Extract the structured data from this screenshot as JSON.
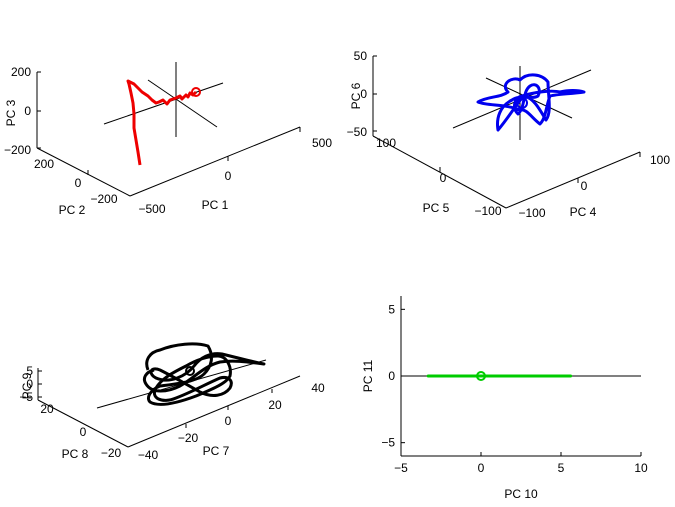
{
  "chart_data": [
    {
      "type": "line-3d",
      "panel": "top-left",
      "color": "#ff0000",
      "xlabel": "PC 1",
      "ylabel": "PC 2",
      "zlabel": "PC 3",
      "xticks": [
        "−500",
        "0",
        "500"
      ],
      "yticks": [
        "200",
        "0",
        "−200"
      ],
      "zticks": [
        "200",
        "0",
        "−200"
      ],
      "xlim": [
        -500,
        500
      ],
      "ylim": [
        -300,
        200
      ],
      "zlim": [
        -200,
        200
      ],
      "marker": "circle at trajectory start"
    },
    {
      "type": "line-3d",
      "panel": "top-right",
      "color": "#0000ff",
      "xlabel": "PC 4",
      "ylabel": "PC 5",
      "zlabel": "PC 6",
      "xticks": [
        "−100",
        "0",
        "100"
      ],
      "yticks": [
        "100",
        "0",
        "−100"
      ],
      "zticks": [
        "50",
        "0",
        "−50"
      ],
      "xlim": [
        -100,
        100
      ],
      "ylim": [
        -100,
        100
      ],
      "zlim": [
        -50,
        50
      ],
      "marker": "circle at trajectory start"
    },
    {
      "type": "line-3d",
      "panel": "bottom-left",
      "color": "#000000",
      "xlabel": "PC 7",
      "ylabel": "PC 8",
      "zlabel": "PC 9",
      "xticks": [
        "−40",
        "−20",
        "0",
        "20",
        "40"
      ],
      "yticks": [
        "20",
        "0",
        "−20"
      ],
      "zticks": [
        "5",
        "0",
        "−5"
      ],
      "xlim": [
        -40,
        40
      ],
      "ylim": [
        -20,
        20
      ],
      "zlim": [
        -5,
        5
      ],
      "marker": "circle at trajectory start"
    },
    {
      "type": "line",
      "panel": "bottom-right",
      "color": "#00cc00",
      "xlabel": "PC 10",
      "ylabel": "PC 11",
      "xticks": [
        "−5",
        "0",
        "5",
        "10"
      ],
      "yticks": [
        "5",
        "0",
        "−5"
      ],
      "xlim": [
        -5,
        10
      ],
      "ylim": [
        -6,
        6
      ],
      "x": [
        -3.3,
        5.6
      ],
      "y": [
        0,
        0
      ],
      "marker": {
        "x": 0,
        "y": 0
      }
    }
  ]
}
